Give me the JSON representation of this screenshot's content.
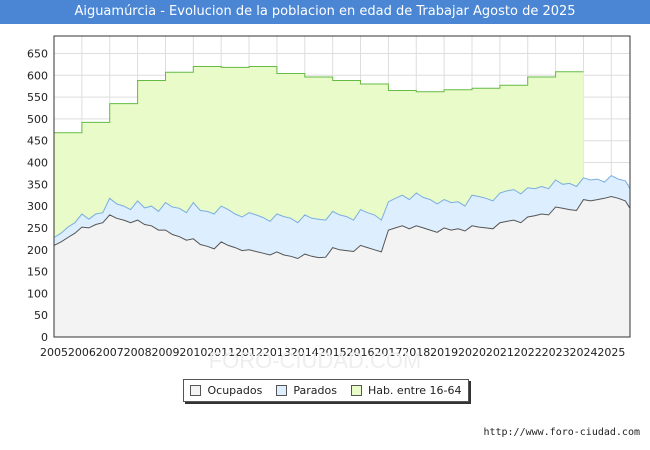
{
  "title": "Aiguamúrcia - Evolucion de la poblacion en edad de Trabajar Agosto de 2025",
  "source": "http://www.foro-ciudad.com",
  "watermark": "FORO-CIUDAD.COM",
  "colors": {
    "title_bg": "#4a86d4",
    "ocupados_fill": "#f3f3f3",
    "ocupados_line": "#555555",
    "parados_fill": "#ddeeff",
    "parados_line": "#7aaee0",
    "hab_fill": "#e8fbc8",
    "hab_line": "#66bb44"
  },
  "chart_data": {
    "type": "area",
    "title": "Aiguamúrcia - Evolucion de la poblacion en edad de Trabajar Agosto de 2025",
    "xlabel": "",
    "ylabel": "",
    "ylim": [
      0,
      690
    ],
    "xlim": [
      2005,
      2025.67
    ],
    "yticks": [
      "0",
      "50",
      "100",
      "150",
      "200",
      "250",
      "300",
      "350",
      "400",
      "450",
      "500",
      "550",
      "600",
      "650"
    ],
    "xticks": [
      "2005",
      "2006",
      "2007",
      "2008",
      "2009",
      "2010",
      "2011",
      "2012",
      "2013",
      "2014",
      "2015",
      "2016",
      "2017",
      "2018",
      "2019",
      "2020",
      "2021",
      "2022",
      "2023",
      "2024",
      "2025"
    ],
    "legend": [
      "Ocupados",
      "Parados",
      "Hab. entre 16-64"
    ],
    "legend_position": "bottom",
    "grid": true,
    "series": [
      {
        "name": "Hab. entre 16-64",
        "x": [
          2005,
          2006,
          2006,
          2007,
          2007,
          2008,
          2008,
          2009,
          2009,
          2010,
          2010,
          2011,
          2011,
          2012,
          2012,
          2013,
          2013,
          2014,
          2014,
          2015,
          2015,
          2016,
          2016,
          2017,
          2017,
          2018,
          2018,
          2019,
          2019,
          2020,
          2020,
          2021,
          2021,
          2022,
          2022,
          2023,
          2023,
          2024
        ],
        "y": [
          468,
          468,
          492,
          492,
          535,
          535,
          588,
          588,
          607,
          607,
          620,
          620,
          618,
          618,
          620,
          620,
          604,
          604,
          596,
          596,
          588,
          588,
          580,
          580,
          565,
          565,
          562,
          562,
          567,
          567,
          570,
          570,
          577,
          577,
          596,
          596,
          608,
          608
        ]
      },
      {
        "name": "Parados",
        "x": [
          2005,
          2005.25,
          2005.5,
          2005.75,
          2006,
          2006.25,
          2006.5,
          2006.75,
          2007,
          2007.25,
          2007.5,
          2007.75,
          2008,
          2008.25,
          2008.5,
          2008.75,
          2009,
          2009.25,
          2009.5,
          2009.75,
          2010,
          2010.25,
          2010.5,
          2010.75,
          2011,
          2011.25,
          2011.5,
          2011.75,
          2012,
          2012.25,
          2012.5,
          2012.75,
          2013,
          2013.25,
          2013.5,
          2013.75,
          2014,
          2014.25,
          2014.5,
          2014.75,
          2015,
          2015.25,
          2015.5,
          2015.75,
          2016,
          2016.25,
          2016.5,
          2016.75,
          2017,
          2017.25,
          2017.5,
          2017.75,
          2018,
          2018.25,
          2018.5,
          2018.75,
          2019,
          2019.25,
          2019.5,
          2019.75,
          2020,
          2020.25,
          2020.5,
          2020.75,
          2021,
          2021.25,
          2021.5,
          2021.75,
          2022,
          2022.25,
          2022.5,
          2022.75,
          2023,
          2023.25,
          2023.5,
          2023.75,
          2024,
          2024.25,
          2024.5,
          2024.75,
          2025,
          2025.25,
          2025.5,
          2025.67
        ],
        "y": [
          228,
          238,
          252,
          262,
          282,
          270,
          282,
          285,
          318,
          305,
          300,
          292,
          312,
          296,
          300,
          288,
          308,
          298,
          295,
          285,
          308,
          290,
          288,
          282,
          300,
          292,
          282,
          275,
          285,
          280,
          274,
          265,
          282,
          276,
          272,
          262,
          280,
          272,
          270,
          268,
          288,
          280,
          276,
          268,
          292,
          285,
          280,
          268,
          310,
          318,
          325,
          315,
          330,
          320,
          315,
          305,
          315,
          308,
          310,
          300,
          325,
          322,
          318,
          312,
          330,
          335,
          338,
          328,
          342,
          340,
          345,
          340,
          360,
          350,
          352,
          345,
          365,
          360,
          362,
          355,
          370,
          362,
          358,
          340
        ]
      },
      {
        "name": "Ocupados",
        "x": [
          2005,
          2005.25,
          2005.5,
          2005.75,
          2006,
          2006.25,
          2006.5,
          2006.75,
          2007,
          2007.25,
          2007.5,
          2007.75,
          2008,
          2008.25,
          2008.5,
          2008.75,
          2009,
          2009.25,
          2009.5,
          2009.75,
          2010,
          2010.25,
          2010.5,
          2010.75,
          2011,
          2011.25,
          2011.5,
          2011.75,
          2012,
          2012.25,
          2012.5,
          2012.75,
          2013,
          2013.25,
          2013.5,
          2013.75,
          2014,
          2014.25,
          2014.5,
          2014.75,
          2015,
          2015.25,
          2015.5,
          2015.75,
          2016,
          2016.25,
          2016.5,
          2016.75,
          2017,
          2017.25,
          2017.5,
          2017.75,
          2018,
          2018.25,
          2018.5,
          2018.75,
          2019,
          2019.25,
          2019.5,
          2019.75,
          2020,
          2020.25,
          2020.5,
          2020.75,
          2021,
          2021.25,
          2021.5,
          2021.75,
          2022,
          2022.25,
          2022.5,
          2022.75,
          2023,
          2023.25,
          2023.5,
          2023.75,
          2024,
          2024.25,
          2024.5,
          2024.75,
          2025,
          2025.25,
          2025.5,
          2025.67
        ],
        "y": [
          210,
          218,
          228,
          238,
          252,
          250,
          258,
          262,
          280,
          272,
          268,
          262,
          268,
          258,
          255,
          245,
          245,
          235,
          230,
          222,
          225,
          212,
          208,
          202,
          218,
          210,
          205,
          198,
          200,
          196,
          192,
          188,
          195,
          188,
          185,
          180,
          190,
          185,
          182,
          183,
          205,
          200,
          198,
          196,
          210,
          205,
          200,
          195,
          245,
          250,
          255,
          248,
          255,
          250,
          245,
          240,
          250,
          245,
          248,
          243,
          255,
          252,
          250,
          248,
          262,
          265,
          268,
          262,
          275,
          278,
          282,
          280,
          298,
          295,
          292,
          290,
          315,
          312,
          315,
          318,
          322,
          318,
          312,
          295
        ]
      }
    ]
  }
}
